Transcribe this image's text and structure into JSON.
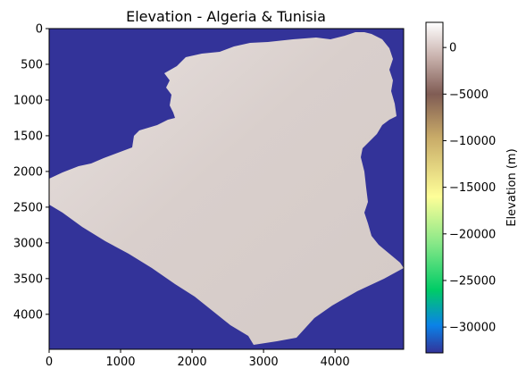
{
  "chart_data": {
    "type": "heatmap",
    "title": "Elevation - Algeria & Tunisia",
    "x_ticks": [
      "0",
      "1000",
      "2000",
      "3000",
      "4000"
    ],
    "x_tick_values": [
      0,
      1000,
      2000,
      3000,
      4000
    ],
    "xlim": [
      0,
      4960
    ],
    "y_ticks": [
      "0",
      "500",
      "1000",
      "1500",
      "2000",
      "2500",
      "3000",
      "3500",
      "4000"
    ],
    "y_tick_values": [
      0,
      500,
      1000,
      1500,
      2000,
      2500,
      3000,
      3500,
      4000
    ],
    "ylim": [
      4490,
      0
    ],
    "colorbar": {
      "label": "Elevation (m)",
      "colormap": "terrain",
      "range": [
        -32768,
        2700
      ],
      "ticks": [
        "0",
        "−5000",
        "−10000",
        "−15000",
        "−20000",
        "−25000",
        "−30000"
      ],
      "tick_values": [
        0,
        -5000,
        -10000,
        -15000,
        -20000,
        -25000,
        -30000
      ],
      "stops": [
        {
          "value": -32768,
          "color": "#333399"
        },
        {
          "value": -29800,
          "color": "#0a82e8"
        },
        {
          "value": -26000,
          "color": "#00cc66"
        },
        {
          "value": -21000,
          "color": "#88e888"
        },
        {
          "value": -16000,
          "color": "#fefe98"
        },
        {
          "value": -9600,
          "color": "#c8aa68"
        },
        {
          "value": -5000,
          "color": "#805c54"
        },
        {
          "value": -1000,
          "color": "#c9b2ad"
        },
        {
          "value": 2700,
          "color": "#ffffff"
        }
      ]
    },
    "nodata_color": "#333399",
    "land_color": "#d8cecb"
  }
}
